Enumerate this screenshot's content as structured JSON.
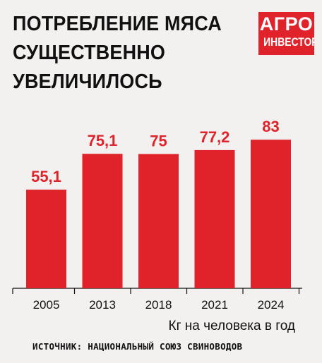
{
  "title_lines": [
    "ПОТРЕБЛЕНИЕ МЯСА",
    "СУЩЕСТВЕННО",
    "УВЕЛИЧИЛОСЬ"
  ],
  "logo": {
    "line1": "АГРО",
    "line2": "ИНВЕСТОР"
  },
  "unit_label": "Кг на человека в год",
  "source": "ИСТОЧНИК: НАЦИОНАЛЬНЫЙ СОЮЗ СВИНОВОДОВ",
  "colors": {
    "bar": "#e0232a",
    "background": "#f3f1ef",
    "text": "#111111"
  },
  "chart_data": {
    "type": "bar",
    "categories": [
      "2005",
      "2013",
      "2018",
      "2021",
      "2024"
    ],
    "values": [
      55.1,
      75.1,
      75,
      77.2,
      83
    ],
    "value_labels": [
      "55,1",
      "75,1",
      "75",
      "77,2",
      "83"
    ],
    "title": "",
    "xlabel": "",
    "ylabel": "Кг на человека в год",
    "ylim": [
      0,
      90
    ],
    "grid": false,
    "legend": "none"
  }
}
